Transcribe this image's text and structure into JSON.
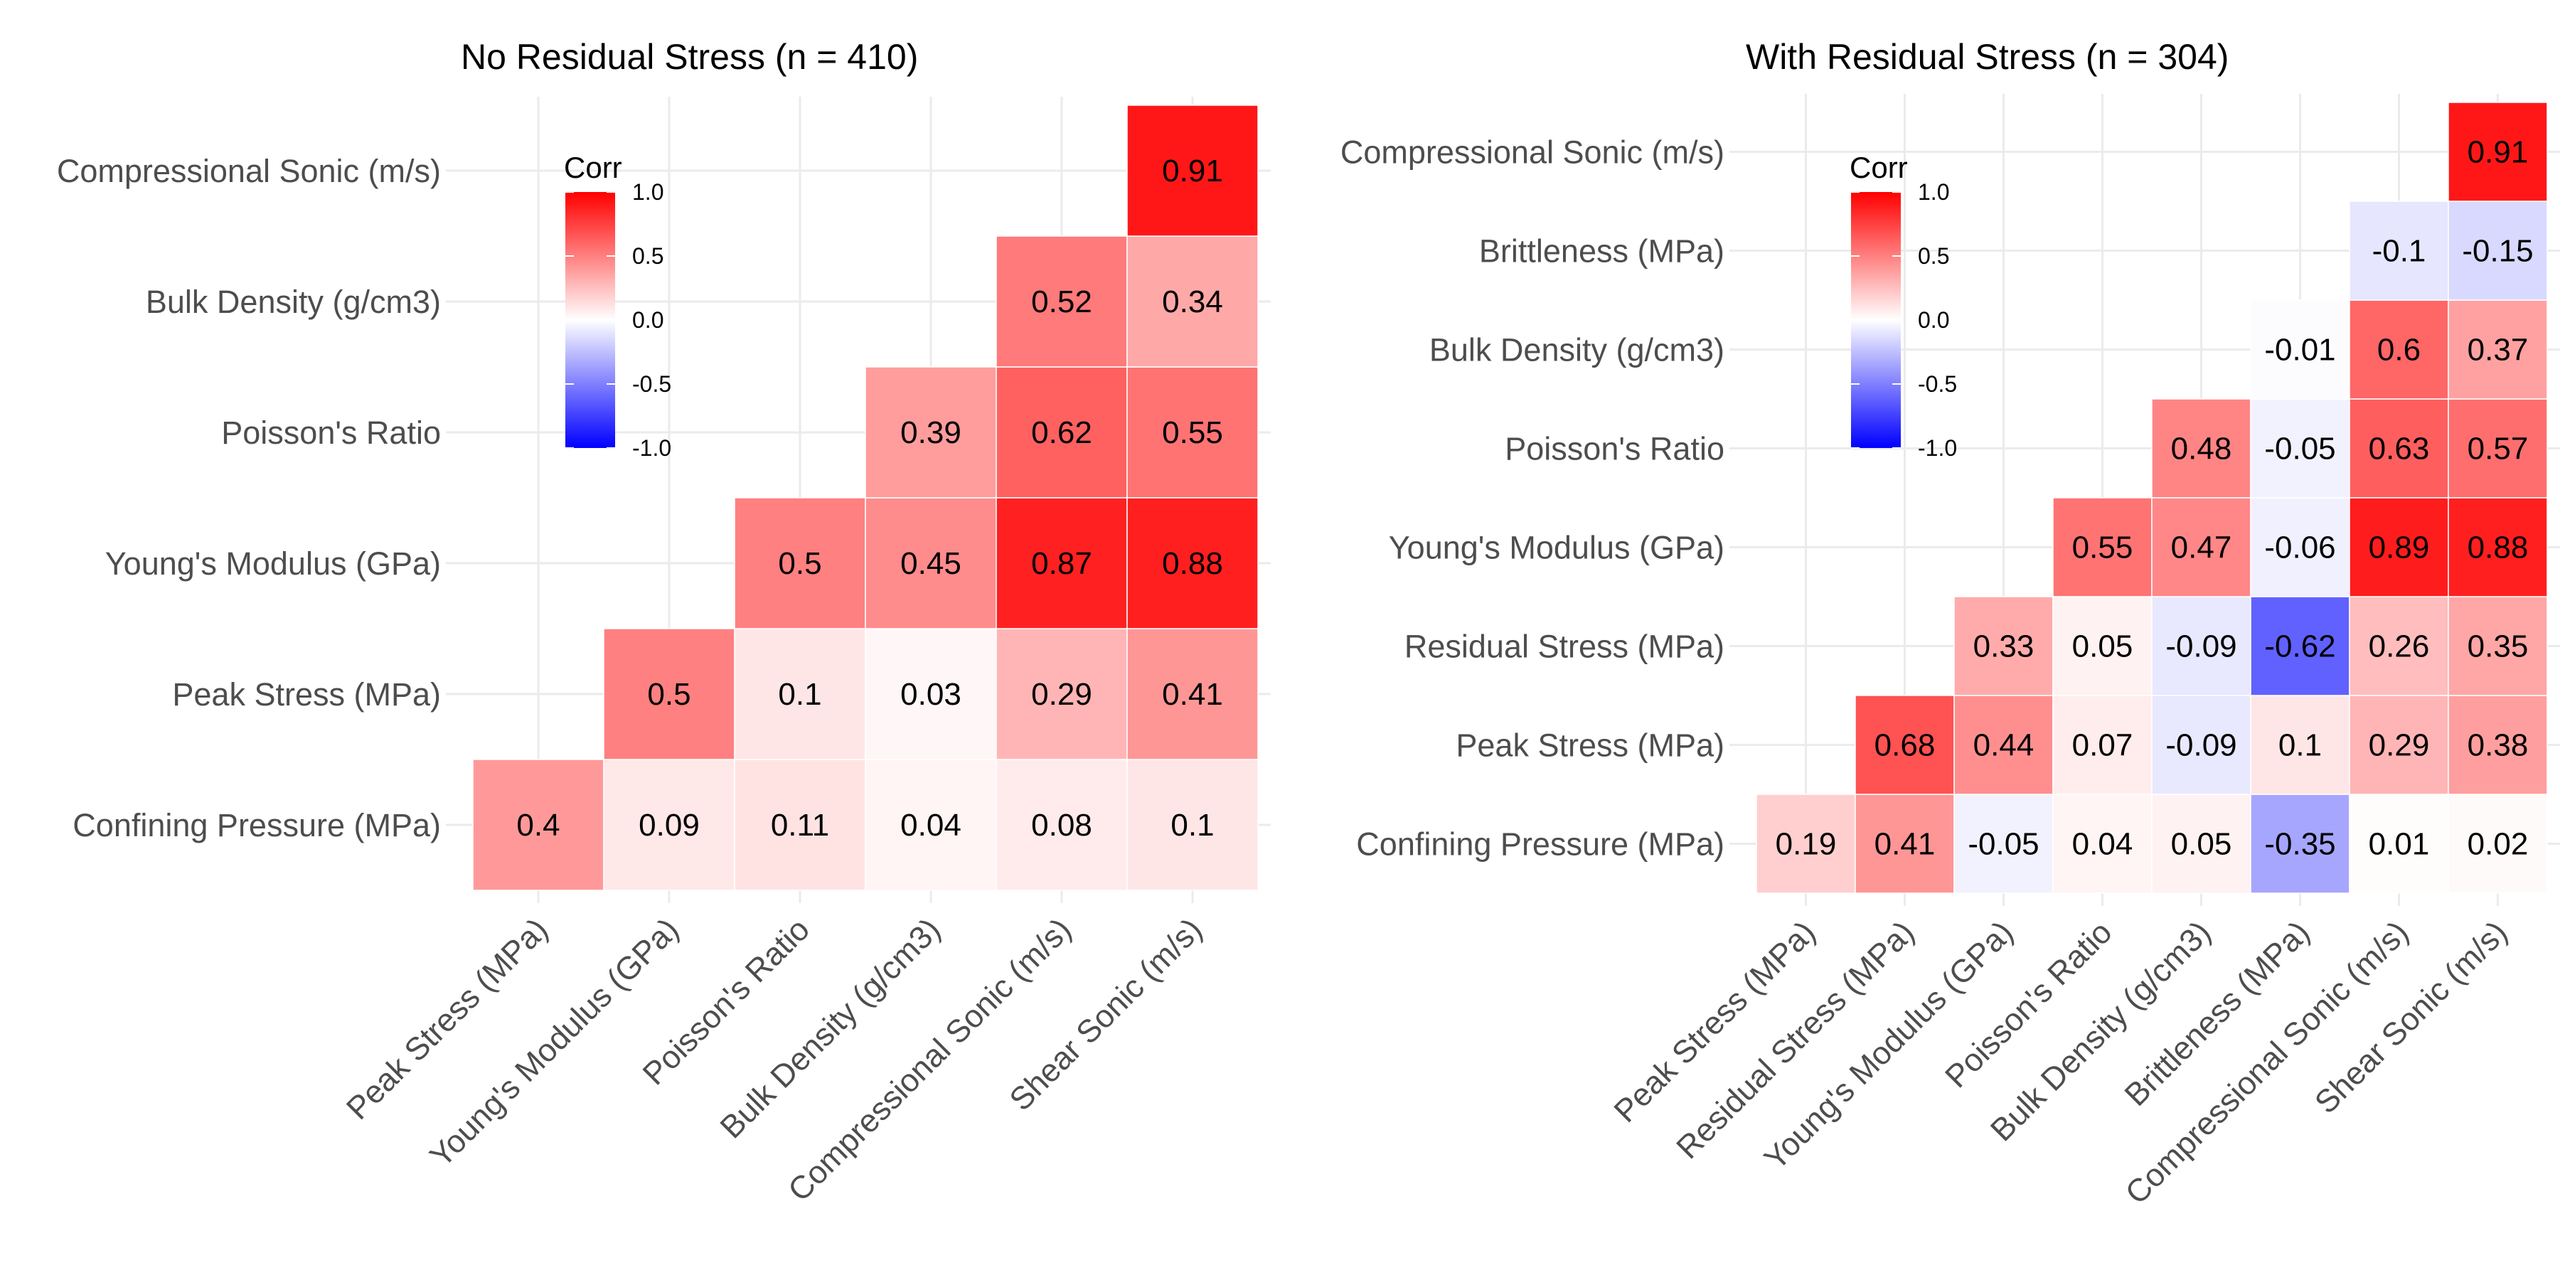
{
  "chart_data": [
    {
      "type": "heatmap",
      "title": "No Residual Stress (n = 410)",
      "legend": {
        "title": "Corr",
        "ticks": [
          "1.0",
          "0.5",
          "0.0",
          "-0.5",
          "-1.0"
        ],
        "tick_values": [
          1.0,
          0.5,
          0.0,
          -0.5,
          -1.0
        ],
        "range": [
          -1,
          1
        ],
        "placement": "upper-left-inside"
      },
      "colors": {
        "low": "#0000ff",
        "mid": "#ffffff",
        "high": "#ff0000"
      },
      "x_labels": [
        "Peak Stress (MPa)",
        "Young's Modulus (GPa)",
        "Poisson's Ratio",
        "Bulk Density (g/cm3)",
        "Compressional Sonic (m/s)",
        "Shear Sonic (m/s)"
      ],
      "y_labels": [
        "Confining Pressure (MPa)",
        "Peak Stress (MPa)",
        "Young's Modulus (GPa)",
        "Poisson's Ratio",
        "Bulk Density (g/cm3)",
        "Compressional Sonic (m/s)"
      ],
      "cells": [
        {
          "x": 0,
          "y": 0,
          "value": 0.4,
          "label": "0.4"
        },
        {
          "x": 1,
          "y": 0,
          "value": 0.09,
          "label": "0.09"
        },
        {
          "x": 2,
          "y": 0,
          "value": 0.11,
          "label": "0.11"
        },
        {
          "x": 3,
          "y": 0,
          "value": 0.04,
          "label": "0.04"
        },
        {
          "x": 4,
          "y": 0,
          "value": 0.08,
          "label": "0.08"
        },
        {
          "x": 5,
          "y": 0,
          "value": 0.1,
          "label": "0.1"
        },
        {
          "x": 1,
          "y": 1,
          "value": 0.5,
          "label": "0.5"
        },
        {
          "x": 2,
          "y": 1,
          "value": 0.1,
          "label": "0.1"
        },
        {
          "x": 3,
          "y": 1,
          "value": 0.03,
          "label": "0.03"
        },
        {
          "x": 4,
          "y": 1,
          "value": 0.29,
          "label": "0.29"
        },
        {
          "x": 5,
          "y": 1,
          "value": 0.41,
          "label": "0.41"
        },
        {
          "x": 2,
          "y": 2,
          "value": 0.5,
          "label": "0.5"
        },
        {
          "x": 3,
          "y": 2,
          "value": 0.45,
          "label": "0.45"
        },
        {
          "x": 4,
          "y": 2,
          "value": 0.87,
          "label": "0.87"
        },
        {
          "x": 5,
          "y": 2,
          "value": 0.88,
          "label": "0.88"
        },
        {
          "x": 3,
          "y": 3,
          "value": 0.39,
          "label": "0.39"
        },
        {
          "x": 4,
          "y": 3,
          "value": 0.62,
          "label": "0.62"
        },
        {
          "x": 5,
          "y": 3,
          "value": 0.55,
          "label": "0.55"
        },
        {
          "x": 4,
          "y": 4,
          "value": 0.52,
          "label": "0.52"
        },
        {
          "x": 5,
          "y": 4,
          "value": 0.34,
          "label": "0.34"
        },
        {
          "x": 5,
          "y": 5,
          "value": 0.91,
          "label": "0.91"
        }
      ]
    },
    {
      "type": "heatmap",
      "title": "With Residual Stress (n = 304)",
      "legend": {
        "title": "Corr",
        "ticks": [
          "1.0",
          "0.5",
          "0.0",
          "-0.5",
          "-1.0"
        ],
        "tick_values": [
          1.0,
          0.5,
          0.0,
          -0.5,
          -1.0
        ],
        "range": [
          -1,
          1
        ],
        "placement": "upper-left-inside"
      },
      "colors": {
        "low": "#0000ff",
        "mid": "#ffffff",
        "high": "#ff0000"
      },
      "x_labels": [
        "Peak Stress (MPa)",
        "Residual Stress (MPa)",
        "Young's Modulus (GPa)",
        "Poisson's Ratio",
        "Bulk Density (g/cm3)",
        "Brittleness (MPa)",
        "Compressional Sonic (m/s)",
        "Shear Sonic (m/s)"
      ],
      "y_labels": [
        "Confining Pressure (MPa)",
        "Peak Stress (MPa)",
        "Residual Stress (MPa)",
        "Young's Modulus (GPa)",
        "Poisson's Ratio",
        "Bulk Density (g/cm3)",
        "Brittleness (MPa)",
        "Compressional Sonic (m/s)"
      ],
      "cells": [
        {
          "x": 0,
          "y": 0,
          "value": 0.19,
          "label": "0.19"
        },
        {
          "x": 1,
          "y": 0,
          "value": 0.41,
          "label": "0.41"
        },
        {
          "x": 2,
          "y": 0,
          "value": -0.05,
          "label": "-0.05"
        },
        {
          "x": 3,
          "y": 0,
          "value": 0.04,
          "label": "0.04"
        },
        {
          "x": 4,
          "y": 0,
          "value": 0.05,
          "label": "0.05"
        },
        {
          "x": 5,
          "y": 0,
          "value": -0.35,
          "label": "-0.35"
        },
        {
          "x": 6,
          "y": 0,
          "value": 0.01,
          "label": "0.01"
        },
        {
          "x": 7,
          "y": 0,
          "value": 0.02,
          "label": "0.02"
        },
        {
          "x": 1,
          "y": 1,
          "value": 0.68,
          "label": "0.68"
        },
        {
          "x": 2,
          "y": 1,
          "value": 0.44,
          "label": "0.44"
        },
        {
          "x": 3,
          "y": 1,
          "value": 0.07,
          "label": "0.07"
        },
        {
          "x": 4,
          "y": 1,
          "value": -0.09,
          "label": "-0.09"
        },
        {
          "x": 5,
          "y": 1,
          "value": 0.1,
          "label": "0.1"
        },
        {
          "x": 6,
          "y": 1,
          "value": 0.29,
          "label": "0.29"
        },
        {
          "x": 7,
          "y": 1,
          "value": 0.38,
          "label": "0.38"
        },
        {
          "x": 2,
          "y": 2,
          "value": 0.33,
          "label": "0.33"
        },
        {
          "x": 3,
          "y": 2,
          "value": 0.05,
          "label": "0.05"
        },
        {
          "x": 4,
          "y": 2,
          "value": -0.09,
          "label": "-0.09"
        },
        {
          "x": 5,
          "y": 2,
          "value": -0.62,
          "label": "-0.62"
        },
        {
          "x": 6,
          "y": 2,
          "value": 0.26,
          "label": "0.26"
        },
        {
          "x": 7,
          "y": 2,
          "value": 0.35,
          "label": "0.35"
        },
        {
          "x": 3,
          "y": 3,
          "value": 0.55,
          "label": "0.55"
        },
        {
          "x": 4,
          "y": 3,
          "value": 0.47,
          "label": "0.47"
        },
        {
          "x": 5,
          "y": 3,
          "value": -0.06,
          "label": "-0.06"
        },
        {
          "x": 6,
          "y": 3,
          "value": 0.89,
          "label": "0.89"
        },
        {
          "x": 7,
          "y": 3,
          "value": 0.88,
          "label": "0.88"
        },
        {
          "x": 4,
          "y": 4,
          "value": 0.48,
          "label": "0.48"
        },
        {
          "x": 5,
          "y": 4,
          "value": -0.05,
          "label": "-0.05"
        },
        {
          "x": 6,
          "y": 4,
          "value": 0.63,
          "label": "0.63"
        },
        {
          "x": 7,
          "y": 4,
          "value": 0.57,
          "label": "0.57"
        },
        {
          "x": 5,
          "y": 5,
          "value": -0.01,
          "label": "-0.01"
        },
        {
          "x": 6,
          "y": 5,
          "value": 0.6,
          "label": "0.6"
        },
        {
          "x": 7,
          "y": 5,
          "value": 0.37,
          "label": "0.37"
        },
        {
          "x": 6,
          "y": 6,
          "value": -0.1,
          "label": "-0.1"
        },
        {
          "x": 7,
          "y": 6,
          "value": -0.15,
          "label": "-0.15"
        },
        {
          "x": 7,
          "y": 7,
          "value": 0.91,
          "label": "0.91"
        }
      ]
    }
  ]
}
